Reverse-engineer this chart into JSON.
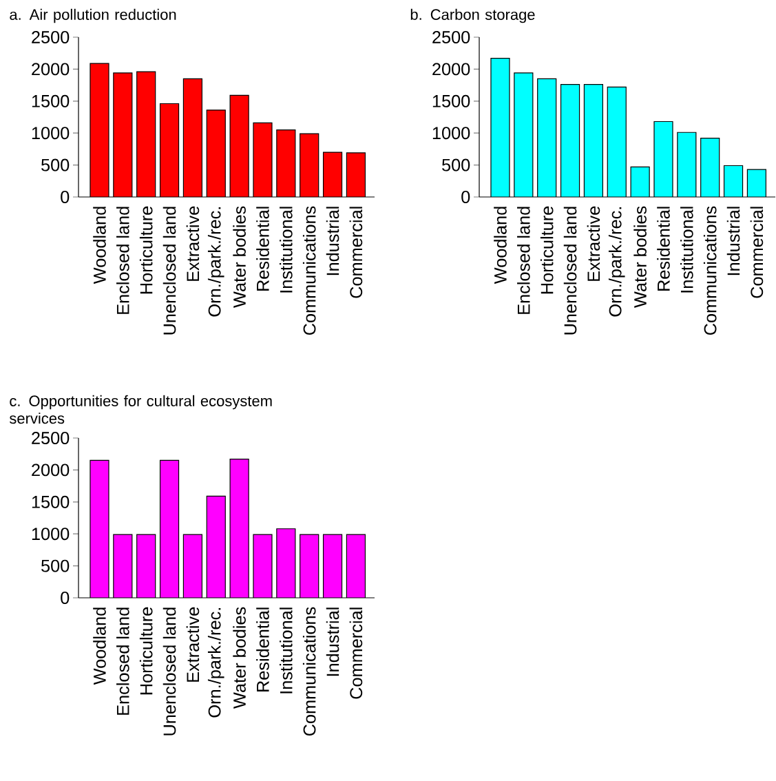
{
  "chart_data": [
    {
      "type": "bar",
      "title": "a. Air pollution reduction",
      "categories": [
        "Woodland",
        "Enclosed land",
        "Horticulture",
        "Unenclosed land",
        "Extractive",
        "Orn./park./rec.",
        "Water bodies",
        "Residential",
        "Institutional",
        "Communications",
        "Industrial",
        "Commercial"
      ],
      "values": [
        2090,
        1940,
        1960,
        1460,
        1850,
        1360,
        1590,
        1160,
        1050,
        990,
        700,
        690
      ],
      "color": "#ff0000",
      "ylim": [
        0,
        2500
      ],
      "yticks": [
        0,
        500,
        1000,
        1500,
        2000,
        2500
      ]
    },
    {
      "type": "bar",
      "title": "b. Carbon storage",
      "categories": [
        "Woodland",
        "Enclosed land",
        "Horticulture",
        "Unenclosed land",
        "Extractive",
        "Orn./park./rec.",
        "Water bodies",
        "Residential",
        "Institutional",
        "Communications",
        "Industrial",
        "Commercial"
      ],
      "values": [
        2170,
        1940,
        1850,
        1760,
        1760,
        1720,
        470,
        1180,
        1010,
        920,
        490,
        430
      ],
      "color": "#00ffff",
      "ylim": [
        0,
        2500
      ],
      "yticks": [
        0,
        500,
        1000,
        1500,
        2000,
        2500
      ]
    },
    {
      "type": "bar",
      "title": "c. Opportunities for cultural ecosystem services",
      "categories": [
        "Woodland",
        "Enclosed land",
        "Horticulture",
        "Unenclosed land",
        "Extractive",
        "Orn./park./rec.",
        "Water bodies",
        "Residential",
        "Institutional",
        "Communications",
        "Industrial",
        "Commercial"
      ],
      "values": [
        2150,
        990,
        990,
        2150,
        990,
        1590,
        2170,
        990,
        1080,
        990,
        990,
        990
      ],
      "color": "#ff00ff",
      "ylim": [
        0,
        2500
      ],
      "yticks": [
        0,
        500,
        1000,
        1500,
        2000,
        2500
      ]
    }
  ]
}
